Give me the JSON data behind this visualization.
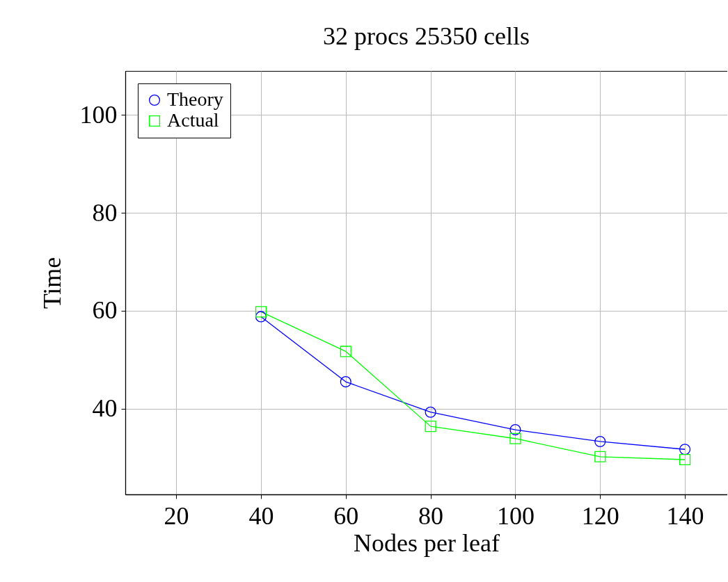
{
  "chart_data": {
    "type": "line",
    "title": "32 procs 25350 cells",
    "xlabel": "Nodes per leaf",
    "ylabel": "Time",
    "x": [
      40,
      60,
      80,
      100,
      120,
      140
    ],
    "series": [
      {
        "name": "Theory",
        "color": "#0000ff",
        "marker": "circle",
        "values": [
          58.8,
          45.5,
          39.3,
          35.7,
          33.3,
          31.7
        ]
      },
      {
        "name": "Actual",
        "color": "#00ff00",
        "marker": "square",
        "values": [
          59.8,
          51.7,
          36.4,
          33.9,
          30.2,
          29.6
        ]
      }
    ],
    "xlim": [
      8,
      150
    ],
    "ylim": [
      22.5,
      109
    ],
    "xticks": [
      20,
      40,
      60,
      80,
      100,
      120,
      140
    ],
    "yticks": [
      40,
      60,
      80,
      100
    ],
    "grid": true,
    "legend": "top left"
  }
}
